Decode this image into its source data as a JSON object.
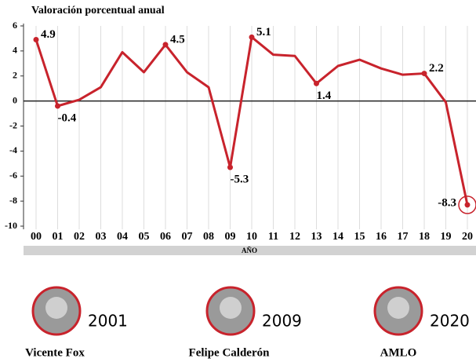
{
  "chart_data": {
    "type": "line",
    "title": "Valoración porcentual anual",
    "xlabel": "AÑO",
    "categories": [
      "00",
      "01",
      "02",
      "03",
      "04",
      "05",
      "06",
      "07",
      "08",
      "09",
      "10",
      "11",
      "12",
      "13",
      "14",
      "15",
      "16",
      "17",
      "18",
      "19",
      "20"
    ],
    "values": [
      4.9,
      -0.4,
      0.1,
      1.1,
      3.9,
      2.3,
      4.5,
      2.3,
      1.1,
      -5.3,
      5.1,
      3.7,
      3.6,
      1.4,
      2.8,
      3.3,
      2.6,
      2.1,
      2.2,
      -0.1,
      -8.3
    ],
    "value_labels": [
      "4.9",
      "-0.4",
      null,
      null,
      null,
      null,
      "4.5",
      null,
      null,
      "-5.3",
      "5.1",
      null,
      null,
      "1.4",
      null,
      null,
      null,
      null,
      "2.2",
      null,
      "-8.3"
    ],
    "color": "#c8232c",
    "ylim": [
      -10,
      6
    ],
    "yticks": [
      6,
      4,
      2,
      0,
      -2,
      -4,
      -6,
      -8,
      -10
    ],
    "grid": true
  },
  "presidents": [
    {
      "year": "2001",
      "name": "Vicente Fox"
    },
    {
      "year": "2009",
      "name": "Felipe Calderón"
    },
    {
      "year": "2020",
      "name": "AMLO"
    }
  ]
}
